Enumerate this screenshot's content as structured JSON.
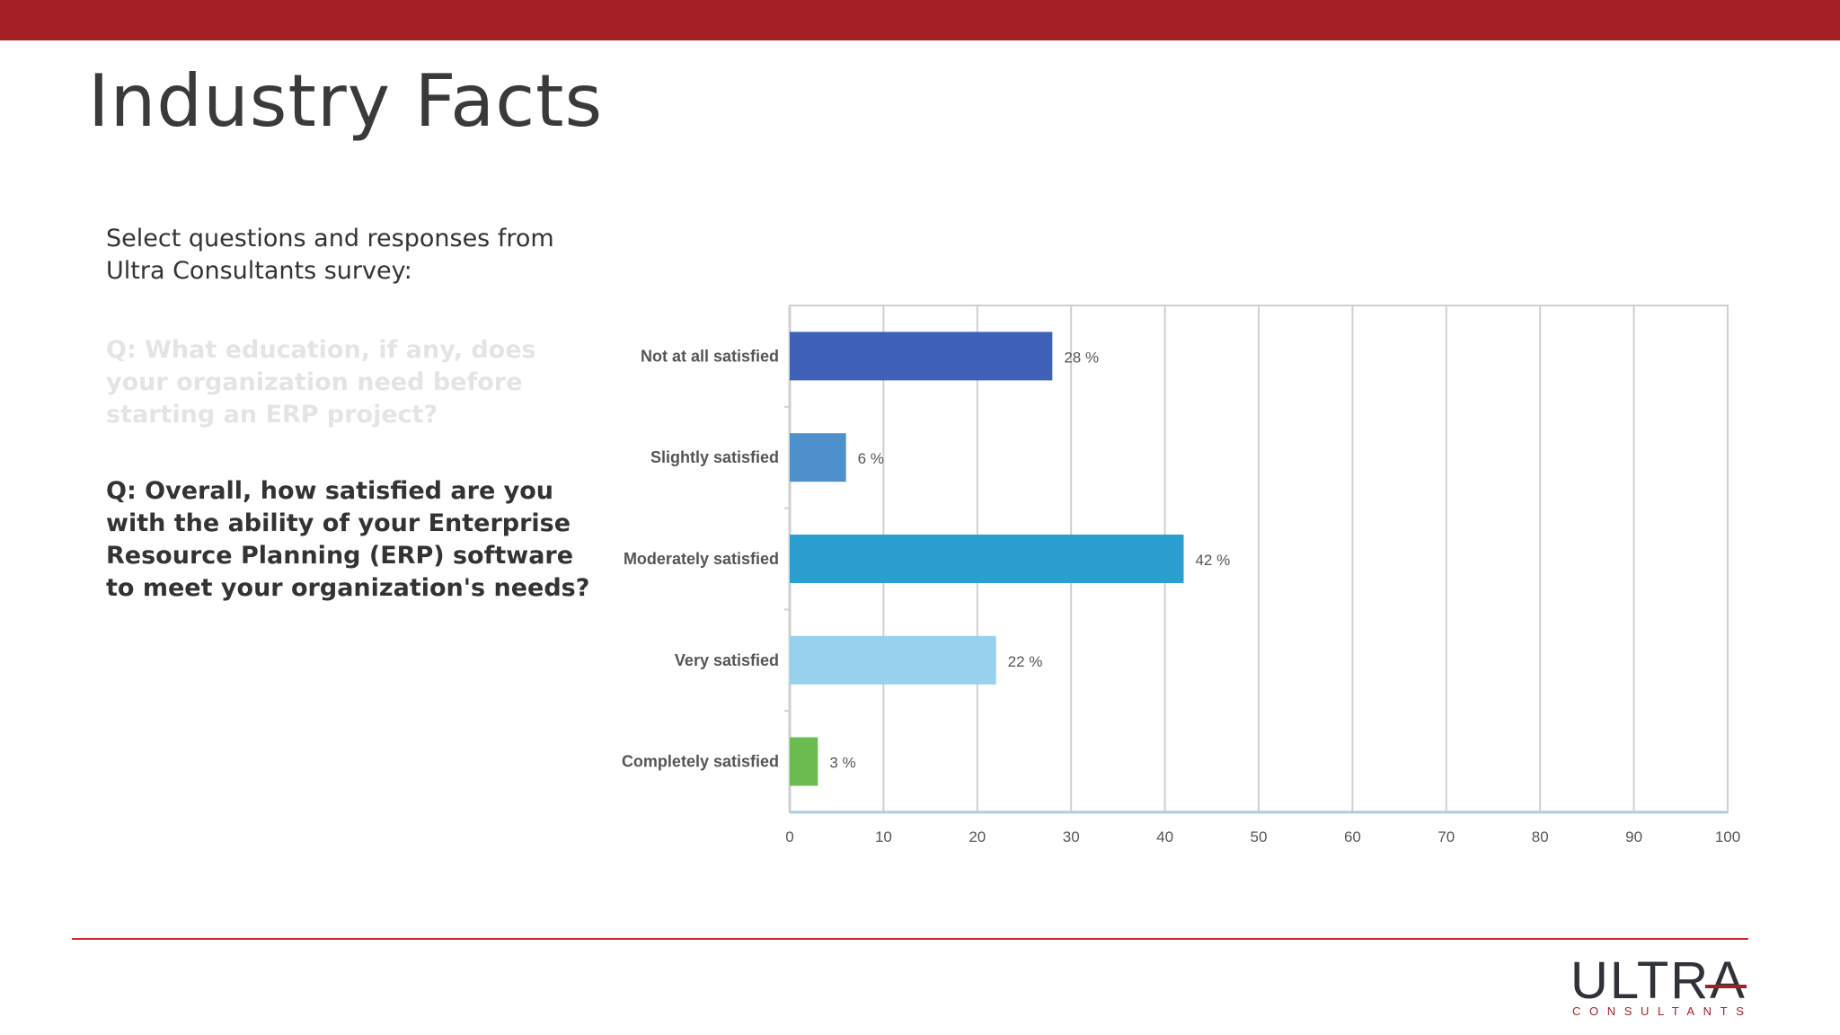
{
  "slide": {
    "title": "Industry Facts",
    "intro": "Select questions and responses from Ultra Consultants survey:",
    "question_faded": "Q: What education, if any, does your organization need before starting an ERP project?",
    "question_active": "Q: Overall, how satisfied are you with the ability of your Enterprise Resource Planning (ERP) software to meet your organization's needs?"
  },
  "logo": {
    "word": "ULTRA",
    "subtitle": "CONSULTANTS"
  },
  "colors": {
    "brand_red": "#a52026",
    "footer_line": "#c8242b",
    "faded_text": "#e4e4e4",
    "grid": "#cfcfcf",
    "axis": "#a9cfe3"
  },
  "chart_data": {
    "type": "bar",
    "orientation": "horizontal",
    "categories": [
      "Not at all satisfied",
      "Slightly satisfied",
      "Moderately satisfied",
      "Very satisfied",
      "Completely satisfied"
    ],
    "values": [
      28,
      6,
      42,
      22,
      3
    ],
    "data_labels": [
      "28 %",
      "6 %",
      "42 %",
      "22 %",
      "3 %"
    ],
    "bar_colors": [
      "#3f61b7",
      "#4d90cc",
      "#2a9fd0",
      "#98d1ee",
      "#6cbd4f"
    ],
    "xlim": [
      0,
      100
    ],
    "xticks": [
      0,
      10,
      20,
      30,
      40,
      50,
      60,
      70,
      80,
      90,
      100
    ],
    "grid": true,
    "title": "",
    "xlabel": "",
    "ylabel": ""
  }
}
